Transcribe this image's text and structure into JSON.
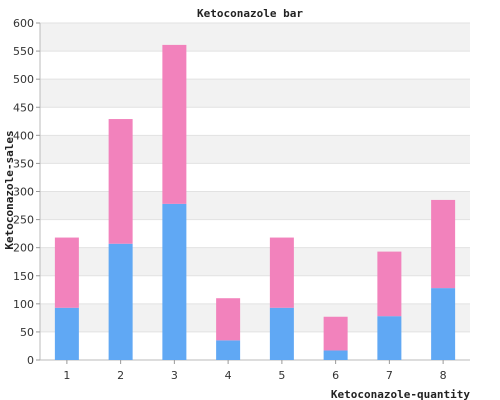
{
  "chart_data": {
    "type": "bar",
    "stacked": true,
    "title": "Ketoconazole bar",
    "xlabel": "Ketoconazole-quantity",
    "ylabel": "Ketoconazole-sales",
    "categories": [
      "1",
      "2",
      "3",
      "4",
      "5",
      "6",
      "7",
      "8"
    ],
    "series": [
      {
        "color": "#60a8f4",
        "values": [
          93,
          207,
          278,
          35,
          93,
          17,
          78,
          128
        ]
      },
      {
        "color": "#f282bc",
        "values": [
          125,
          222,
          283,
          75,
          125,
          60,
          115,
          157
        ]
      }
    ],
    "ylim": [
      0,
      600
    ],
    "yticks": [
      0,
      50,
      100,
      150,
      200,
      250,
      300,
      350,
      400,
      450,
      500,
      550,
      600
    ],
    "grid": true,
    "band_colors": [
      "#f2f2f2",
      "#ffffff"
    ]
  }
}
